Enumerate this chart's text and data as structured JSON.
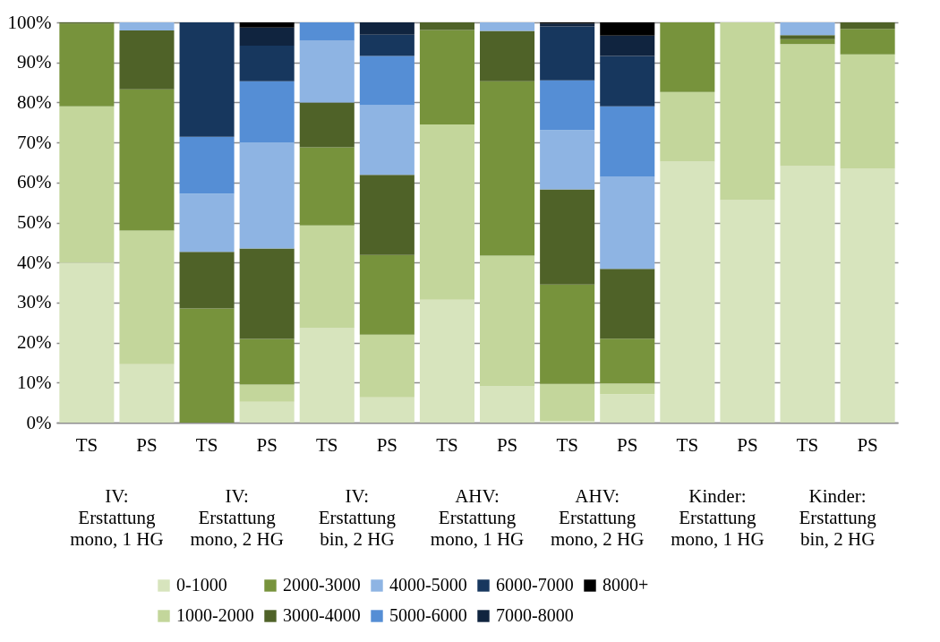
{
  "chart_data": {
    "type": "bar",
    "stacked": true,
    "categories": [
      "TS",
      "PS",
      "TS",
      "PS",
      "TS",
      "PS",
      "TS",
      "PS",
      "TS",
      "PS",
      "TS",
      "PS",
      "TS",
      "PS"
    ],
    "annotations": [
      "IV:\nErstattung\nmono, 1 HG",
      "IV:\nErstattung\nmono, 2 HG",
      "IV:\nErstattung\nbin, 2 HG",
      "AHV:\nErstattung\nmono, 1 HG",
      "AHV:\nErstattung\nmono, 2 HG",
      "Kinder:\nErstattung\nmono, 1 HG",
      "Kinder:\nErstattung\nbin, 2 HG"
    ],
    "series": [
      {
        "name": "0-1000",
        "color": "#d7e4bd",
        "values": [
          40.0,
          14.6,
          0,
          5.2,
          23.6,
          6.3,
          30.7,
          9.2,
          0.4,
          7.1,
          65.2,
          55.6,
          64.1,
          63.4
        ]
      },
      {
        "name": "1000-2000",
        "color": "#c3d69b",
        "values": [
          39.0,
          33.4,
          0,
          4.3,
          25.7,
          15.7,
          43.8,
          32.5,
          9.3,
          2.7,
          17.4,
          44.4,
          30.5,
          28.6
        ]
      },
      {
        "name": "2000-3000",
        "color": "#77933c",
        "values": [
          20.7,
          35.3,
          28.5,
          11.4,
          19.5,
          19.9,
          23.6,
          43.6,
          24.8,
          11.2,
          17.4,
          0,
          1.2,
          6.4
        ]
      },
      {
        "name": "3000-4000",
        "color": "#4f6228",
        "values": [
          0.3,
          14.7,
          14.2,
          22.6,
          11.2,
          20.0,
          1.9,
          12.6,
          23.8,
          17.4,
          0,
          0,
          1.0,
          1.6
        ]
      },
      {
        "name": "4000-5000",
        "color": "#8eb4e3",
        "values": [
          0,
          2.0,
          14.5,
          26.5,
          15.4,
          17.4,
          0,
          2.1,
          14.8,
          23.0,
          0,
          0,
          3.2,
          0
        ]
      },
      {
        "name": "5000-6000",
        "color": "#558ed5",
        "values": [
          0,
          0,
          14.2,
          15.3,
          4.6,
          12.3,
          0,
          0,
          12.4,
          17.6,
          0,
          0,
          0,
          0
        ]
      },
      {
        "name": "6000-7000",
        "color": "#17375e",
        "values": [
          0,
          0,
          28.6,
          8.9,
          0,
          5.3,
          0,
          0,
          13.5,
          12.6,
          0,
          0,
          0,
          0
        ]
      },
      {
        "name": "7000-8000",
        "color": "#10243f",
        "values": [
          0,
          0,
          0,
          4.5,
          0,
          3.1,
          0,
          0,
          0.7,
          5.1,
          0,
          0,
          0,
          0
        ]
      },
      {
        "name": "8000+",
        "color": "#000000",
        "values": [
          0,
          0,
          0,
          1.3,
          0,
          0,
          0,
          0,
          0.3,
          3.3,
          0,
          0,
          0,
          0
        ]
      }
    ],
    "ylim": [
      0,
      100
    ],
    "yticks": [
      {
        "value": 0,
        "label": "0%"
      },
      {
        "value": 10,
        "label": "10%"
      },
      {
        "value": 20,
        "label": "20%"
      },
      {
        "value": 30,
        "label": "30%"
      },
      {
        "value": 40,
        "label": "40%"
      },
      {
        "value": 50,
        "label": "50%"
      },
      {
        "value": 60,
        "label": "60%"
      },
      {
        "value": 70,
        "label": "70%"
      },
      {
        "value": 80,
        "label": "80%"
      },
      {
        "value": 90,
        "label": "90%"
      },
      {
        "value": 100,
        "label": "100%"
      }
    ],
    "grid": "y",
    "legend": "bottom"
  }
}
